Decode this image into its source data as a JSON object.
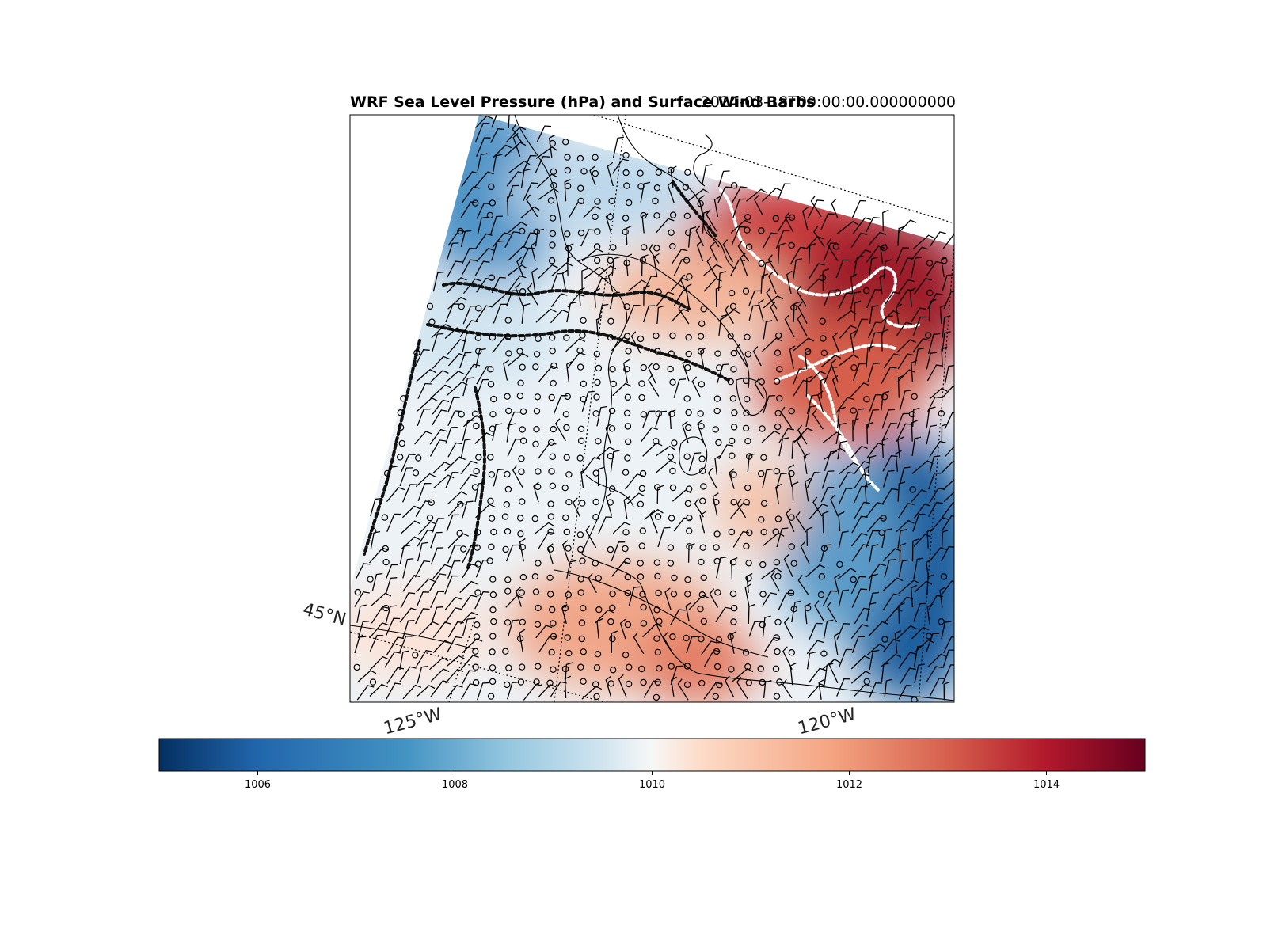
{
  "figure": {
    "title": "WRF Sea Level Pressure (hPa) and Surface Wind Barbs",
    "valid_time": "2024-03-18T00:00:00.000000000"
  },
  "map": {
    "latitude_labels": [
      "45°N"
    ],
    "longitude_labels": [
      "125°W",
      "120°W"
    ],
    "gridlines": "dotted",
    "features": [
      "coastlines",
      "state borders",
      "wind barbs",
      "pressure contours"
    ]
  },
  "colorbar": {
    "colormap": "RdBu_r",
    "min": 1005,
    "max": 1015,
    "ticks": [
      "1006",
      "1008",
      "1010",
      "1012",
      "1014"
    ],
    "colors": {
      "low": "#0b3a6f",
      "mid_low": "#5b9bc8",
      "neutral": "#f2f2f2",
      "mid_high": "#e6907a",
      "high": "#6b0d1f"
    }
  }
}
